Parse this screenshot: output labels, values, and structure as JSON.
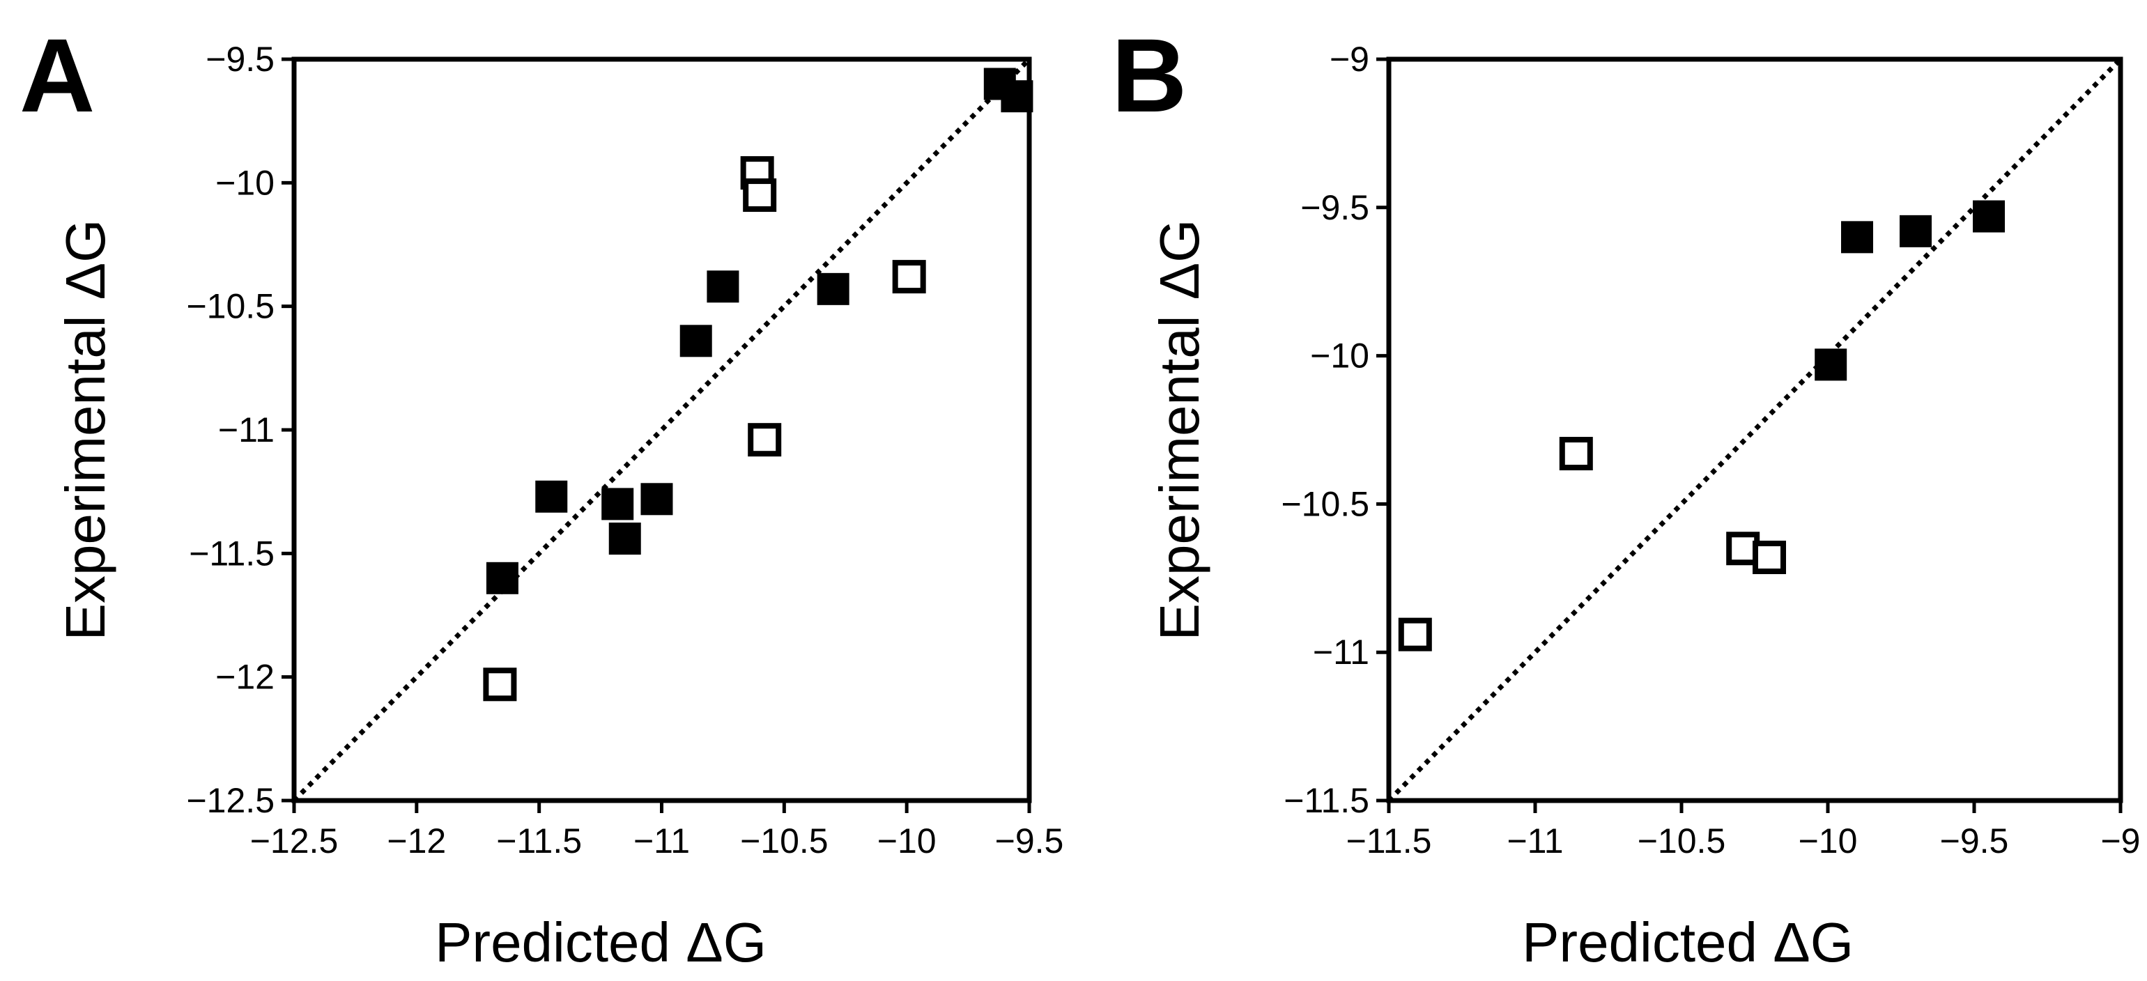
{
  "chart_data": [
    {
      "type": "scatter",
      "panel_label": "A",
      "xlabel": "Predicted ΔG",
      "ylabel": "Experimental ΔG",
      "xlim": [
        -12.5,
        -9.5
      ],
      "ylim": [
        -12.5,
        -9.5
      ],
      "xticks": [
        -12.5,
        -12,
        -11.5,
        -11,
        -10.5,
        -10,
        -9.5
      ],
      "yticks": [
        -12.5,
        -12,
        -11.5,
        -11,
        -10.5,
        -10,
        -9.5
      ],
      "xtick_labels": [
        "−12.5",
        "−12",
        "−11.5",
        "−11",
        "−10.5",
        "−10",
        "−9.5"
      ],
      "ytick_labels": [
        "−12.5",
        "−12",
        "−11.5",
        "−11",
        "−10.5",
        "−10",
        "−9.5"
      ],
      "reference_line": "y = x (dotted)",
      "series": [
        {
          "name": "filled",
          "marker": "filled-square",
          "points": [
            [
              -9.62,
              -9.6
            ],
            [
              -9.55,
              -9.65
            ],
            [
              -10.75,
              -10.42
            ],
            [
              -10.3,
              -10.43
            ],
            [
              -10.86,
              -10.64
            ],
            [
              -11.45,
              -11.27
            ],
            [
              -11.18,
              -11.3
            ],
            [
              -11.02,
              -11.28
            ],
            [
              -11.15,
              -11.44
            ],
            [
              -11.65,
              -11.6
            ]
          ]
        },
        {
          "name": "open",
          "marker": "open-square",
          "points": [
            [
              -10.61,
              -9.96
            ],
            [
              -10.6,
              -10.05
            ],
            [
              -9.99,
              -10.38
            ],
            [
              -10.58,
              -11.04
            ],
            [
              -11.66,
              -12.03
            ]
          ]
        }
      ]
    },
    {
      "type": "scatter",
      "panel_label": "B",
      "xlabel": "Predicted ΔG",
      "ylabel": "Experimental ΔG",
      "xlim": [
        -11.5,
        -9
      ],
      "ylim": [
        -11.5,
        -9
      ],
      "xticks": [
        -11.5,
        -11,
        -10.5,
        -10,
        -9.5,
        -9
      ],
      "yticks": [
        -11.5,
        -11,
        -10.5,
        -10,
        -9.5,
        -9
      ],
      "xtick_labels": [
        "−11.5",
        "−11",
        "−10.5",
        "−10",
        "−9.5",
        "−9"
      ],
      "ytick_labels": [
        "−11.5",
        "−11",
        "−10.5",
        "−10",
        "−9.5",
        "−9"
      ],
      "reference_line": "y = x (dotted)",
      "series": [
        {
          "name": "filled",
          "marker": "filled-square",
          "points": [
            [
              -9.9,
              -9.6
            ],
            [
              -9.7,
              -9.58
            ],
            [
              -9.45,
              -9.53
            ],
            [
              -9.99,
              -10.03
            ]
          ]
        },
        {
          "name": "open",
          "marker": "open-square",
          "points": [
            [
              -10.86,
              -10.33
            ],
            [
              -10.29,
              -10.65
            ],
            [
              -10.2,
              -10.68
            ],
            [
              -11.41,
              -10.94
            ]
          ]
        }
      ]
    }
  ]
}
